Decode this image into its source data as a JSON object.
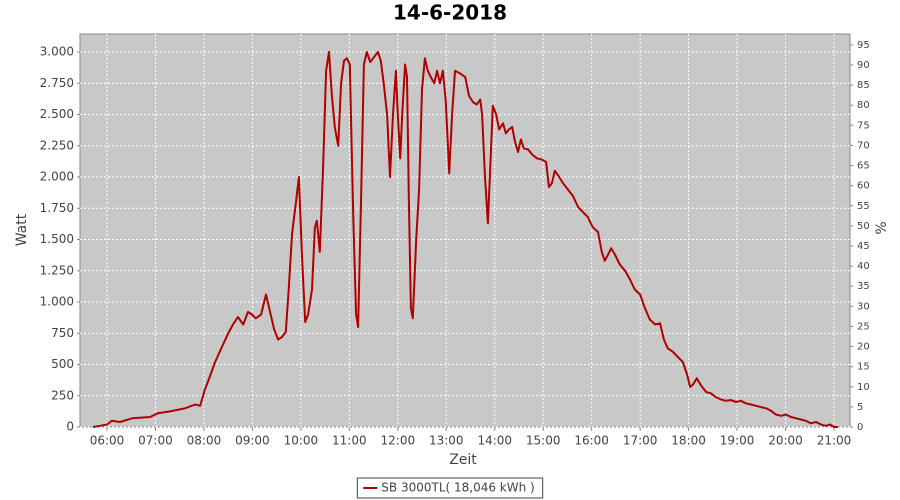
{
  "chart_data": {
    "type": "line",
    "title": "14-6-2018",
    "x_label": "Zeit",
    "y_label": "Watt",
    "y2_label": "%",
    "x": [
      5.71,
      5.86,
      6.0,
      6.1,
      6.27,
      6.52,
      6.89,
      7.05,
      7.3,
      7.61,
      7.82,
      7.92,
      8.02,
      8.12,
      8.23,
      8.37,
      8.5,
      8.6,
      8.7,
      8.81,
      8.91,
      8.99,
      9.07,
      9.18,
      9.28,
      9.36,
      9.45,
      9.53,
      9.61,
      9.69,
      9.75,
      9.82,
      9.9,
      9.96,
      10.02,
      10.09,
      10.15,
      10.23,
      10.29,
      10.33,
      10.39,
      10.46,
      10.52,
      10.58,
      10.64,
      10.7,
      10.77,
      10.83,
      10.89,
      10.95,
      11.01,
      11.08,
      11.14,
      11.18,
      11.24,
      11.3,
      11.36,
      11.43,
      11.51,
      11.59,
      11.65,
      11.71,
      11.78,
      11.84,
      11.9,
      11.96,
      12.0,
      12.05,
      12.09,
      12.15,
      12.19,
      12.23,
      12.27,
      12.31,
      12.38,
      12.44,
      12.5,
      12.56,
      12.62,
      12.68,
      12.75,
      12.81,
      12.87,
      12.93,
      12.99,
      13.06,
      13.12,
      13.18,
      13.28,
      13.39,
      13.47,
      13.55,
      13.63,
      13.7,
      13.74,
      13.8,
      13.86,
      13.92,
      13.96,
      14.03,
      14.09,
      14.17,
      14.23,
      14.29,
      14.36,
      14.42,
      14.48,
      14.54,
      14.6,
      14.69,
      14.77,
      14.87,
      14.97,
      15.06,
      15.12,
      15.18,
      15.24,
      15.33,
      15.41,
      15.51,
      15.61,
      15.72,
      15.82,
      15.92,
      16.02,
      16.13,
      16.21,
      16.27,
      16.34,
      16.4,
      16.48,
      16.58,
      16.69,
      16.79,
      16.89,
      17.0,
      17.1,
      17.2,
      17.31,
      17.41,
      17.49,
      17.57,
      17.68,
      17.78,
      17.88,
      17.97,
      18.03,
      18.09,
      18.17,
      18.26,
      18.36,
      18.46,
      18.56,
      18.67,
      18.77,
      18.87,
      18.98,
      19.08,
      19.18,
      19.29,
      19.39,
      19.49,
      19.6,
      19.7,
      19.8,
      19.91,
      20.01,
      20.11,
      20.22,
      20.32,
      20.42,
      20.52,
      20.63,
      20.73,
      20.83,
      20.92,
      21.0,
      21.08
    ],
    "series": [
      {
        "name": "SB 3000TL( 18,046 kWh )",
        "color": "#b00000",
        "values": [
          0,
          10,
          20,
          50,
          40,
          70,
          80,
          110,
          125,
          150,
          180,
          170,
          300,
          400,
          520,
          640,
          750,
          820,
          880,
          820,
          920,
          900,
          870,
          900,
          1060,
          930,
          780,
          700,
          720,
          760,
          1100,
          1550,
          1800,
          2000,
          1400,
          840,
          900,
          1100,
          1600,
          1650,
          1400,
          2100,
          2850,
          3000,
          2650,
          2400,
          2250,
          2750,
          2930,
          2950,
          2900,
          1700,
          900,
          800,
          1800,
          2900,
          3000,
          2920,
          2960,
          3000,
          2930,
          2750,
          2500,
          2000,
          2500,
          2850,
          2500,
          2150,
          2500,
          2900,
          2800,
          1800,
          950,
          870,
          1500,
          1900,
          2700,
          2950,
          2850,
          2800,
          2750,
          2850,
          2750,
          2850,
          2600,
          2030,
          2500,
          2850,
          2830,
          2800,
          2650,
          2600,
          2580,
          2620,
          2500,
          2000,
          1630,
          2200,
          2570,
          2500,
          2380,
          2430,
          2350,
          2380,
          2400,
          2280,
          2200,
          2300,
          2230,
          2220,
          2180,
          2150,
          2140,
          2120,
          1920,
          1950,
          2050,
          2000,
          1950,
          1900,
          1850,
          1760,
          1720,
          1680,
          1600,
          1560,
          1400,
          1330,
          1380,
          1430,
          1380,
          1300,
          1250,
          1180,
          1100,
          1060,
          950,
          860,
          820,
          830,
          700,
          630,
          600,
          560,
          520,
          420,
          320,
          340,
          390,
          330,
          280,
          270,
          240,
          220,
          210,
          215,
          200,
          210,
          190,
          180,
          170,
          160,
          150,
          130,
          100,
          90,
          100,
          80,
          70,
          60,
          50,
          30,
          40,
          20,
          10,
          20,
          0,
          0
        ]
      }
    ],
    "xlim": [
      5.443,
      21.33
    ],
    "xticks": [
      {
        "value": 6,
        "label": "06:00"
      },
      {
        "value": 7,
        "label": "07:00"
      },
      {
        "value": 8,
        "label": "08:00"
      },
      {
        "value": 9,
        "label": "09:00"
      },
      {
        "value": 10,
        "label": "10:00"
      },
      {
        "value": 11,
        "label": "11:00"
      },
      {
        "value": 12,
        "label": "12:00"
      },
      {
        "value": 13,
        "label": "13:00"
      },
      {
        "value": 14,
        "label": "14:00"
      },
      {
        "value": 15,
        "label": "15:00"
      },
      {
        "value": 16,
        "label": "16:00"
      },
      {
        "value": 17,
        "label": "17:00"
      },
      {
        "value": 18,
        "label": "18:00"
      },
      {
        "value": 19,
        "label": "19:00"
      },
      {
        "value": 20,
        "label": "20:00"
      },
      {
        "value": 21,
        "label": "21:00"
      }
    ],
    "ylim": [
      0,
      3144
    ],
    "yticks": [
      0,
      250,
      500,
      750,
      {
        "value": 1000,
        "label": "1.000"
      },
      {
        "value": 1250,
        "label": "1.250"
      },
      {
        "value": 1500,
        "label": "1.500"
      },
      {
        "value": 1750,
        "label": "1.750"
      },
      {
        "value": 2000,
        "label": "2.000"
      },
      {
        "value": 2250,
        "label": "2.250"
      },
      {
        "value": 2500,
        "label": "2.500"
      },
      {
        "value": 2750,
        "label": "2.750"
      },
      {
        "value": 3000,
        "label": "3.000"
      }
    ],
    "y2lim": [
      0,
      97.7
    ],
    "y2ticks": [
      0,
      5,
      10,
      15,
      20,
      25,
      30,
      35,
      40,
      45,
      50,
      55,
      60,
      65,
      70,
      75,
      80,
      85,
      90,
      95
    ],
    "grid": true,
    "legend": "bottom"
  }
}
